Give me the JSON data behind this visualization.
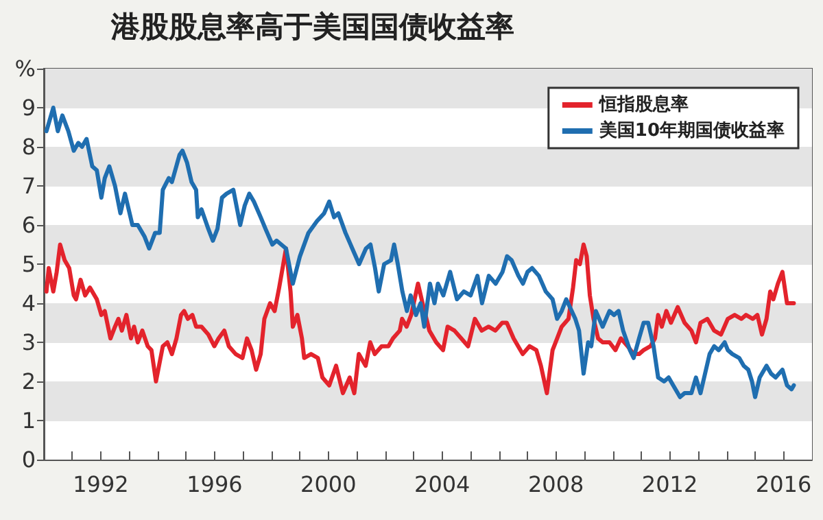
{
  "chart_data": {
    "type": "line",
    "title": "港股股息率高于美国国债收益率",
    "xlim": [
      1990,
      2017
    ],
    "xticks": [
      {
        "value": 1991,
        "label": null
      },
      1992,
      {
        "value": 1993,
        "label": null
      },
      {
        "value": 1994,
        "label": null
      },
      {
        "value": 1995,
        "label": null
      },
      1996,
      {
        "value": 1997,
        "label": null
      },
      {
        "value": 1998,
        "label": null
      },
      {
        "value": 1999,
        "label": null
      },
      2000,
      {
        "value": 2001,
        "label": null
      },
      {
        "value": 2002,
        "label": null
      },
      {
        "value": 2003,
        "label": null
      },
      2004,
      {
        "value": 2005,
        "label": null
      },
      {
        "value": 2006,
        "label": null
      },
      {
        "value": 2007,
        "label": null
      },
      2008,
      {
        "value": 2009,
        "label": null
      },
      {
        "value": 2010,
        "label": null
      },
      {
        "value": 2011,
        "label": null
      },
      2012,
      {
        "value": 2013,
        "label": null
      },
      {
        "value": 2014,
        "label": null
      },
      {
        "value": 2015,
        "label": null
      },
      2016
    ],
    "ylim": [
      0,
      10
    ],
    "yticks": [
      0,
      1,
      2,
      3,
      4,
      5,
      6,
      7,
      8,
      9,
      {
        "value": 10,
        "label": "%"
      }
    ],
    "grid": "y",
    "legend": "top right",
    "marker": "none",
    "line_style": "solid",
    "series": [
      {
        "name": "恒指股息率",
        "color": "#e3232c",
        "x": [
          1990.09,
          1990.17,
          1990.33,
          1990.45,
          1990.57,
          1990.73,
          1990.89,
          1991.05,
          1991.13,
          1991.29,
          1991.45,
          1991.62,
          1991.86,
          1992.02,
          1992.14,
          1992.34,
          1992.5,
          1992.62,
          1992.74,
          1992.9,
          1993.06,
          1993.17,
          1993.3,
          1993.46,
          1993.65,
          1993.78,
          1993.94,
          1994.18,
          1994.34,
          1994.5,
          1994.66,
          1994.82,
          1994.93,
          1995.06,
          1995.22,
          1995.35,
          1995.54,
          1995.78,
          1995.99,
          1996.14,
          1996.34,
          1996.5,
          1996.74,
          1996.98,
          1997.14,
          1997.3,
          1997.46,
          1997.62,
          1997.75,
          1997.95,
          1998.11,
          1998.27,
          1998.51,
          1998.67,
          1998.75,
          1998.91,
          1999.07,
          1999.15,
          1999.39,
          1999.63,
          1999.79,
          2000.03,
          2000.27,
          2000.51,
          2000.75,
          2000.91,
          2001.07,
          2001.31,
          2001.47,
          2001.63,
          2001.87,
          2002.11,
          2002.27,
          2002.51,
          2002.59,
          2002.75,
          2002.91,
          2003.15,
          2003.31,
          2003.55,
          2003.79,
          2004.03,
          2004.19,
          2004.43,
          2004.67,
          2004.91,
          2005.15,
          2005.39,
          2005.63,
          2005.87,
          2006.11,
          2006.27,
          2006.51,
          2006.83,
          2007.07,
          2007.31,
          2007.47,
          2007.68,
          2007.88,
          2008.04,
          2008.2,
          2008.44,
          2008.6,
          2008.71,
          2008.84,
          2008.97,
          2009.08,
          2009.19,
          2009.32,
          2009.48,
          2009.64,
          2009.88,
          2010.09,
          2010.28,
          2010.52,
          2010.73,
          2010.92,
          2011.08,
          2011.32,
          2011.48,
          2011.59,
          2011.72,
          2011.88,
          2012.04,
          2012.28,
          2012.52,
          2012.76,
          2012.92,
          2013.08,
          2013.32,
          2013.56,
          2013.8,
          2014.04,
          2014.28,
          2014.52,
          2014.68,
          2014.92,
          2015.08,
          2015.24,
          2015.4,
          2015.53,
          2015.64,
          2015.8,
          2015.96,
          2016.12,
          2016.28,
          2016.36
        ],
        "values": [
          4.3,
          4.9,
          4.3,
          4.8,
          5.5,
          5.1,
          4.9,
          4.2,
          4.1,
          4.6,
          4.2,
          4.4,
          4.1,
          3.7,
          3.8,
          3.1,
          3.4,
          3.6,
          3.3,
          3.7,
          3.1,
          3.4,
          3.0,
          3.3,
          2.9,
          2.8,
          2.0,
          2.9,
          3.0,
          2.7,
          3.1,
          3.7,
          3.8,
          3.6,
          3.7,
          3.4,
          3.4,
          3.2,
          2.9,
          3.1,
          3.3,
          2.9,
          2.7,
          2.6,
          3.1,
          2.8,
          2.3,
          2.7,
          3.6,
          4.0,
          3.8,
          4.4,
          5.4,
          4.3,
          3.4,
          3.7,
          3.1,
          2.6,
          2.7,
          2.6,
          2.1,
          1.9,
          2.4,
          1.7,
          2.1,
          1.7,
          2.7,
          2.4,
          3.0,
          2.7,
          2.9,
          2.9,
          3.1,
          3.3,
          3.6,
          3.4,
          3.7,
          4.5,
          4.0,
          3.3,
          3.0,
          2.8,
          3.4,
          3.3,
          3.1,
          2.9,
          3.6,
          3.3,
          3.4,
          3.3,
          3.5,
          3.5,
          3.1,
          2.7,
          2.9,
          2.8,
          2.4,
          1.7,
          2.8,
          3.1,
          3.4,
          3.6,
          4.4,
          5.1,
          5.0,
          5.5,
          5.2,
          4.2,
          3.6,
          3.1,
          3.0,
          3.0,
          2.8,
          3.1,
          2.9,
          2.7,
          2.7,
          2.8,
          2.9,
          3.1,
          3.7,
          3.4,
          3.8,
          3.5,
          3.9,
          3.5,
          3.3,
          3.0,
          3.5,
          3.6,
          3.3,
          3.2,
          3.6,
          3.7,
          3.6,
          3.7,
          3.6,
          3.7,
          3.2,
          3.6,
          4.3,
          4.1,
          4.5,
          4.8,
          4.0,
          4.0,
          4.0
        ]
      },
      {
        "name": "美国10年期国债收益率",
        "color": "#1f6eb0",
        "x": [
          1990.09,
          1990.33,
          1990.49,
          1990.65,
          1990.86,
          1991.05,
          1991.21,
          1991.34,
          1991.5,
          1991.7,
          1991.86,
          1992.02,
          1992.14,
          1992.3,
          1992.5,
          1992.69,
          1992.85,
          1993.11,
          1993.3,
          1993.54,
          1993.7,
          1993.91,
          1994.07,
          1994.18,
          1994.39,
          1994.5,
          1994.77,
          1994.87,
          1995.03,
          1995.19,
          1995.35,
          1995.41,
          1995.54,
          1995.78,
          1995.94,
          1996.1,
          1996.26,
          1996.42,
          1996.66,
          1996.9,
          1997.06,
          1997.22,
          1997.38,
          1997.62,
          1997.79,
          1998.03,
          1998.18,
          1998.51,
          1998.75,
          1999.0,
          1999.3,
          1999.6,
          1999.85,
          2000.03,
          2000.2,
          2000.35,
          2000.6,
          2000.84,
          2001.08,
          2001.32,
          2001.48,
          2001.64,
          2001.77,
          2001.96,
          2002.2,
          2002.31,
          2002.44,
          2002.6,
          2002.76,
          2002.89,
          2003.08,
          2003.24,
          2003.37,
          2003.57,
          2003.73,
          2003.85,
          2004.04,
          2004.28,
          2004.52,
          2004.76,
          2005.0,
          2005.24,
          2005.4,
          2005.64,
          2005.88,
          2006.12,
          2006.28,
          2006.44,
          2006.68,
          2006.84,
          2007.0,
          2007.16,
          2007.4,
          2007.64,
          2007.88,
          2008.04,
          2008.2,
          2008.36,
          2008.49,
          2008.68,
          2008.81,
          2008.97,
          2009.13,
          2009.24,
          2009.4,
          2009.64,
          2009.88,
          2010.04,
          2010.2,
          2010.36,
          2010.6,
          2010.73,
          2010.92,
          2011.08,
          2011.24,
          2011.43,
          2011.59,
          2011.8,
          2011.96,
          2012.12,
          2012.36,
          2012.52,
          2012.76,
          2012.92,
          2013.08,
          2013.24,
          2013.4,
          2013.56,
          2013.72,
          2013.93,
          2014.04,
          2014.2,
          2014.44,
          2014.6,
          2014.76,
          2014.89,
          2015.0,
          2015.16,
          2015.4,
          2015.56,
          2015.72,
          2015.96,
          2016.12,
          2016.28,
          2016.36
        ],
        "values": [
          8.4,
          9.0,
          8.4,
          8.8,
          8.4,
          7.9,
          8.1,
          8.0,
          8.2,
          7.5,
          7.4,
          6.7,
          7.2,
          7.5,
          7.0,
          6.3,
          6.8,
          6.0,
          6.0,
          5.7,
          5.4,
          5.8,
          5.8,
          6.9,
          7.2,
          7.1,
          7.8,
          7.9,
          7.6,
          7.1,
          6.9,
          6.2,
          6.4,
          5.9,
          5.6,
          5.9,
          6.7,
          6.8,
          6.9,
          6.0,
          6.5,
          6.8,
          6.6,
          6.2,
          5.9,
          5.5,
          5.6,
          5.4,
          4.5,
          5.2,
          5.8,
          6.1,
          6.3,
          6.6,
          6.2,
          6.3,
          5.8,
          5.4,
          5.0,
          5.4,
          5.5,
          4.9,
          4.3,
          5.0,
          5.1,
          5.5,
          5.0,
          4.3,
          3.8,
          4.2,
          3.7,
          4.0,
          3.4,
          4.5,
          4.0,
          4.5,
          4.2,
          4.8,
          4.1,
          4.3,
          4.2,
          4.7,
          4.0,
          4.7,
          4.5,
          4.8,
          5.2,
          5.1,
          4.7,
          4.5,
          4.8,
          4.9,
          4.7,
          4.3,
          4.1,
          3.6,
          3.8,
          4.1,
          3.9,
          3.6,
          3.3,
          2.2,
          3.0,
          2.9,
          3.8,
          3.4,
          3.8,
          3.7,
          3.8,
          3.3,
          2.8,
          2.6,
          3.1,
          3.5,
          3.5,
          2.9,
          2.1,
          2.0,
          2.1,
          1.9,
          1.6,
          1.7,
          1.7,
          2.1,
          1.7,
          2.2,
          2.7,
          2.9,
          2.8,
          3.0,
          2.8,
          2.7,
          2.6,
          2.4,
          2.3,
          2.0,
          1.6,
          2.1,
          2.4,
          2.2,
          2.1,
          2.3,
          1.9,
          1.8,
          1.9
        ]
      }
    ]
  }
}
